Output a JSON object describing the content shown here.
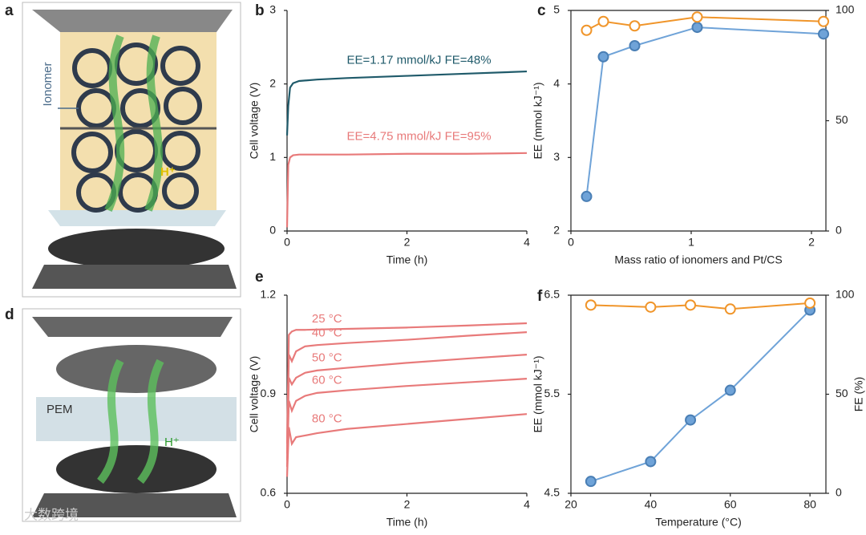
{
  "panel_labels": [
    "a",
    "b",
    "c",
    "d",
    "e",
    "f"
  ],
  "illustration_a": {
    "ionomer": "Ionomer",
    "proton": "H⁺"
  },
  "illustration_d": {
    "membrane": "PEM",
    "proton": "H⁺"
  },
  "watermark": "大数跨境",
  "chart_data": [
    {
      "type": "line",
      "xlabel": "Time (h)",
      "ylabel": "Cell voltage (V)",
      "xlim": [
        0,
        4
      ],
      "xticks": [
        0,
        2,
        4
      ],
      "ylim": [
        0,
        3
      ],
      "yticks": [
        0,
        1,
        2,
        3
      ],
      "x": [
        0,
        0.02,
        0.05,
        0.1,
        0.2,
        0.5,
        1,
        2,
        3,
        4
      ],
      "series": [
        {
          "name": "EE=1.17 mmol/kJ   FE=48%",
          "color": "#1f5a6a",
          "values": [
            1.3,
            1.7,
            1.95,
            2.01,
            2.04,
            2.06,
            2.08,
            2.11,
            2.14,
            2.17
          ]
        },
        {
          "name": "EE=4.75 mmol/kJ   FE=95%",
          "color": "#e87a7a",
          "values": [
            0.05,
            0.9,
            1.0,
            1.03,
            1.04,
            1.04,
            1.04,
            1.05,
            1.05,
            1.06
          ]
        }
      ]
    },
    {
      "type": "line",
      "xlabel": "Mass ratio of ionomers and Pt/CS",
      "ylabel": "EE (mmol kJ⁻¹)",
      "xlim": [
        0,
        2.12
      ],
      "xticks": [
        0,
        1,
        2
      ],
      "ylim": [
        2,
        5
      ],
      "yticks": [
        2,
        3,
        4,
        5
      ],
      "y2lim": [
        0,
        100
      ],
      "y2ticks": [
        0,
        50,
        100
      ],
      "x": [
        0.13,
        0.27,
        0.53,
        1.05,
        2.1
      ],
      "series": [
        {
          "color": "#6fa3d8",
          "marker": "filled",
          "values": [
            2.47,
            4.37,
            4.52,
            4.77,
            4.68
          ]
        },
        {
          "color": "#f0952a",
          "marker": "open",
          "axis": "y2",
          "values": [
            91,
            95,
            93,
            97,
            95
          ]
        }
      ]
    },
    {
      "type": "line",
      "xlabel": "Time (h)",
      "ylabel": "Cell voltage (V)",
      "xlim": [
        0,
        4
      ],
      "xticks": [
        0,
        2,
        4
      ],
      "ylim": [
        0.6,
        1.2
      ],
      "yticks": [
        0.6,
        0.9,
        1.2
      ],
      "x": [
        0,
        0.03,
        0.08,
        0.15,
        0.3,
        0.5,
        1,
        2,
        3,
        4
      ],
      "series": [
        {
          "name": "25 °C",
          "color": "#e87a7a",
          "values": [
            0.75,
            1.08,
            1.09,
            1.095,
            1.095,
            1.096,
            1.098,
            1.102,
            1.108,
            1.115
          ]
        },
        {
          "name": "40 °C",
          "color": "#e87a7a",
          "values": [
            0.72,
            1.02,
            1.0,
            1.03,
            1.045,
            1.049,
            1.055,
            1.065,
            1.077,
            1.088
          ]
        },
        {
          "name": "50 °C",
          "color": "#e87a7a",
          "values": [
            0.7,
            0.95,
            0.93,
            0.95,
            0.965,
            0.972,
            0.98,
            0.995,
            1.008,
            1.02
          ]
        },
        {
          "name": "60 °C",
          "color": "#e87a7a",
          "values": [
            0.68,
            0.88,
            0.85,
            0.88,
            0.895,
            0.904,
            0.912,
            0.925,
            0.936,
            0.947
          ]
        },
        {
          "name": "80 °C",
          "color": "#e87a7a",
          "values": [
            0.65,
            0.8,
            0.75,
            0.77,
            0.775,
            0.782,
            0.795,
            0.81,
            0.825,
            0.84
          ]
        }
      ]
    },
    {
      "type": "line",
      "xlabel": "Temperature (°C)",
      "ylabel": "EE (mmol kJ⁻¹)",
      "y2label": "FE (%)",
      "xlim": [
        20,
        84
      ],
      "xticks": [
        20,
        40,
        60,
        80
      ],
      "ylim": [
        4.5,
        6.5
      ],
      "yticks": [
        4.5,
        5.5,
        6.5
      ],
      "y2lim": [
        0,
        100
      ],
      "y2ticks": [
        0,
        50,
        100
      ],
      "x": [
        25,
        40,
        50,
        60,
        80
      ],
      "series": [
        {
          "color": "#6fa3d8",
          "marker": "filled",
          "values": [
            4.62,
            4.82,
            5.24,
            5.54,
            6.35
          ]
        },
        {
          "color": "#f0952a",
          "marker": "open",
          "axis": "y2",
          "values": [
            95,
            94,
            95,
            93,
            96
          ]
        }
      ]
    }
  ]
}
